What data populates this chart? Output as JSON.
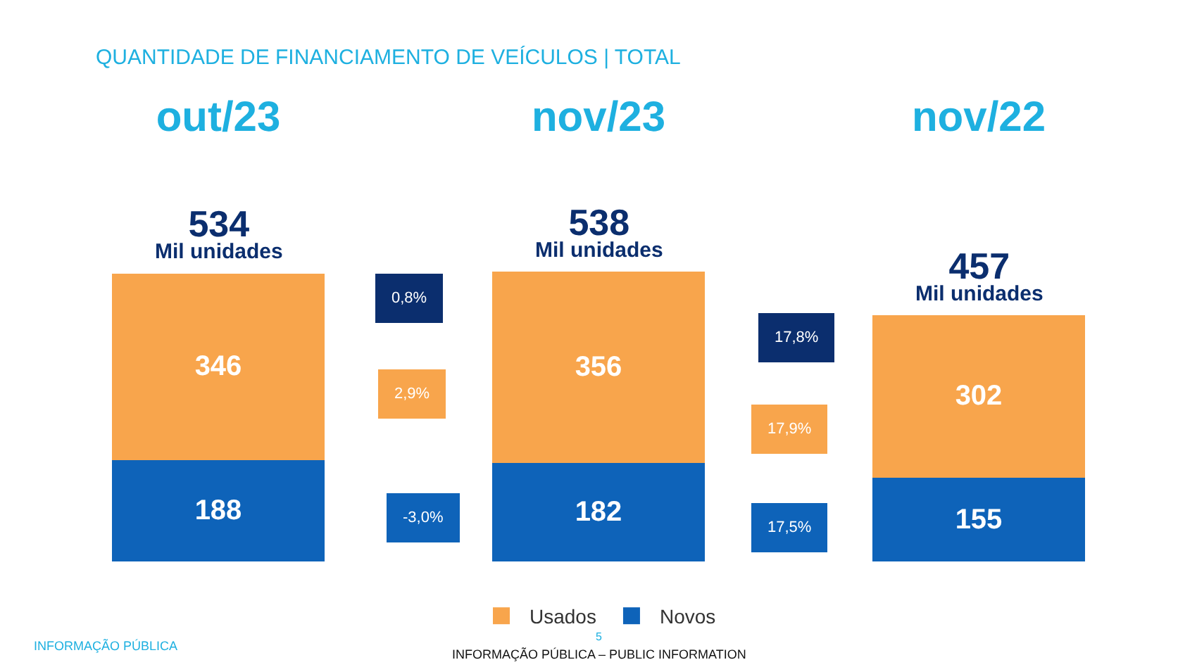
{
  "chart_data": {
    "type": "bar",
    "stacked": true,
    "title": "QUANTIDADE DE FINANCIAMENTO DE VEÍCULOS | TOTAL",
    "categories": [
      "out/23",
      "nov/23",
      "nov/22"
    ],
    "series": [
      {
        "name": "Novos",
        "color": "#0e63b9",
        "values": [
          188,
          182,
          155
        ]
      },
      {
        "name": "Usados",
        "color": "#f8a54c",
        "values": [
          346,
          356,
          302
        ]
      }
    ],
    "data_labels": true,
    "totals": [
      "534\nMil unidades",
      "538\nMil unidades",
      "457\nMil unidades"
    ],
    "annotations": [
      "0,8%",
      "2,9%",
      "-3,0%",
      "17,8%",
      "17,9%",
      "17,5%",
      "INFORMAÇÃO PÚBLICA",
      "5",
      "INFORMAÇÃO PÚBLICA – PUBLIC INFORMATION"
    ],
    "legend": "bottom"
  }
}
